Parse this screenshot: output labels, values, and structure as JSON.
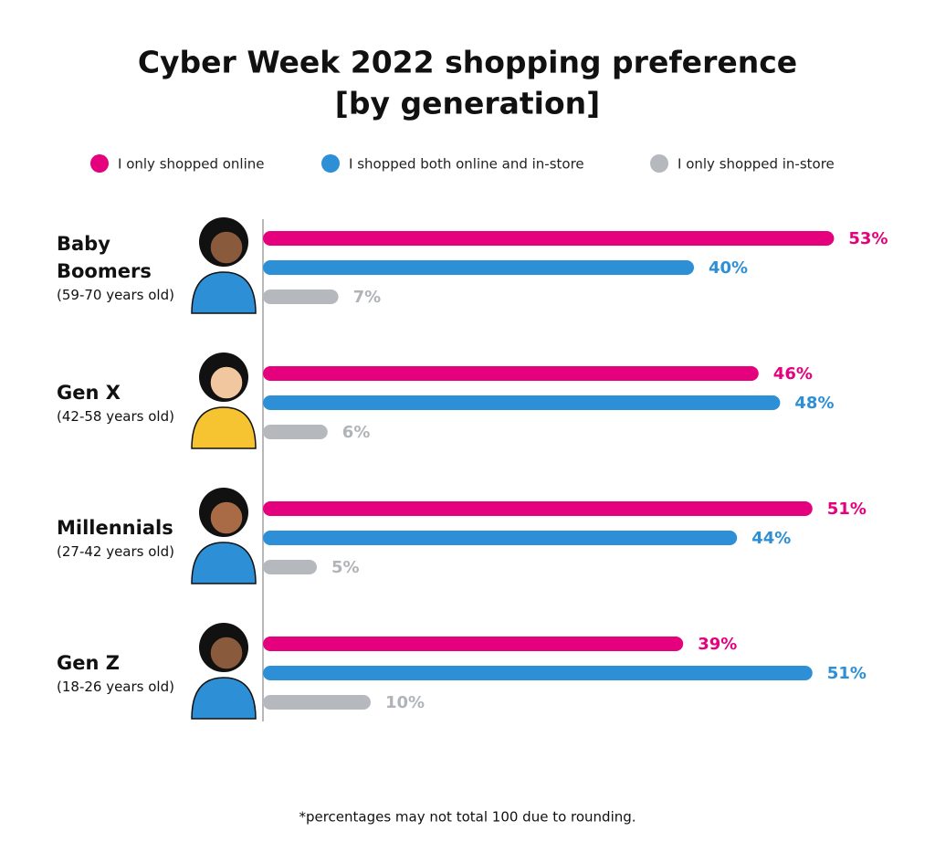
{
  "chart_data": {
    "type": "bar",
    "orientation": "horizontal",
    "title": [
      "Cyber Week 2022 shopping preference",
      "[by generation]"
    ],
    "categories": [
      "Baby Boomers",
      "Gen X",
      "Millennials",
      "Gen Z"
    ],
    "category_subtitles": [
      "(59-70 years old)",
      "(42-58 years old)",
      "(27-42 years old)",
      "(18-26 years old)"
    ],
    "series": [
      {
        "name": "I only shopped online",
        "color": "#e5007e",
        "values": [
          53,
          46,
          51,
          39
        ],
        "value_labels": [
          "53%",
          "46%",
          "51%",
          "39%"
        ]
      },
      {
        "name": "I shopped both online and in-store",
        "color": "#2d8fd5",
        "values": [
          40,
          48,
          44,
          51
        ],
        "value_labels": [
          "40%",
          "48%",
          "44%",
          "51%"
        ]
      },
      {
        "name": "I only shopped in-store",
        "color": "#b5b9be",
        "values": [
          7,
          6,
          5,
          10
        ],
        "value_labels": [
          "7%",
          "6%",
          "5%",
          "10%"
        ]
      }
    ],
    "footnote": "*percentages may not total 100 due to rounding."
  }
}
